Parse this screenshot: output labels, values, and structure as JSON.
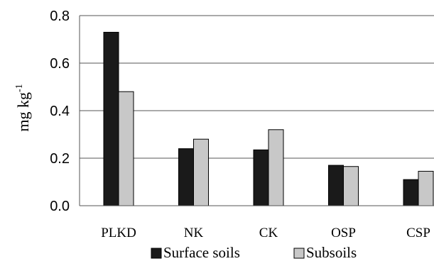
{
  "chart_data": {
    "type": "bar",
    "categories": [
      "PLKD",
      "NK",
      "CK",
      "OSP",
      "CSP"
    ],
    "series": [
      {
        "name": "Surface soils",
        "values": [
          0.73,
          0.24,
          0.235,
          0.17,
          0.11
        ],
        "color": "#1a1a1a"
      },
      {
        "name": "Subsoils",
        "values": [
          0.48,
          0.28,
          0.32,
          0.165,
          0.145
        ],
        "color": "#c8c8c8"
      }
    ],
    "y_ticks": [
      "0.0",
      "0.2",
      "0.4",
      "0.6",
      "0.8"
    ],
    "ylim": [
      0,
      0.8
    ],
    "ylabel": {
      "main": "mg  kg",
      "sup": "-1"
    },
    "xlabel": "",
    "grid": true,
    "legend_position": "bottom"
  }
}
